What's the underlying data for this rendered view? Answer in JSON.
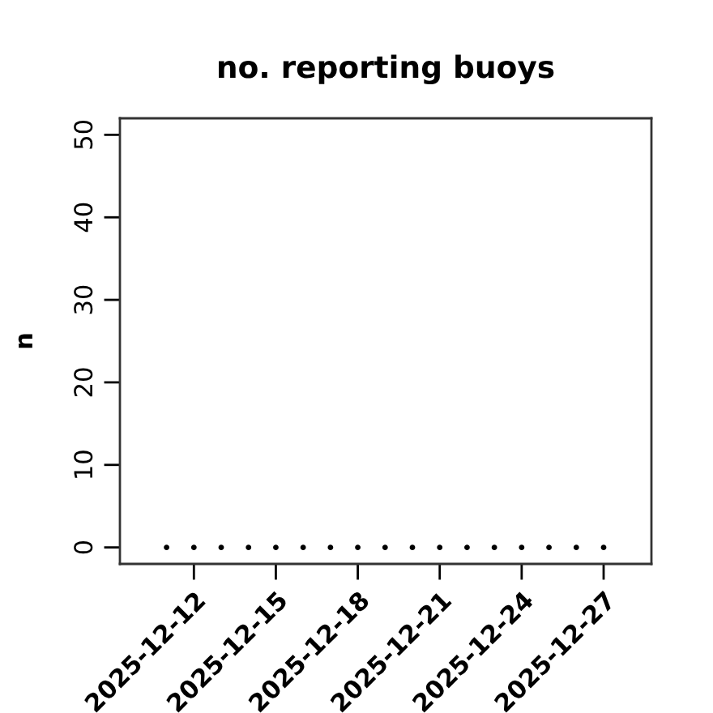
{
  "chart_data": {
    "type": "scatter",
    "title": "no. reporting buoys",
    "ylabel": "n",
    "x": [
      "2025-12-11",
      "2025-12-12",
      "2025-12-13",
      "2025-12-14",
      "2025-12-15",
      "2025-12-16",
      "2025-12-17",
      "2025-12-18",
      "2025-12-19",
      "2025-12-20",
      "2025-12-21",
      "2025-12-22",
      "2025-12-23",
      "2025-12-24",
      "2025-12-25",
      "2025-12-26",
      "2025-12-27"
    ],
    "series": [
      {
        "color": "#000000",
        "values": [
          0,
          0,
          0,
          0,
          0,
          0,
          0,
          0,
          0,
          0,
          0,
          0,
          0,
          0,
          0,
          0,
          0
        ]
      }
    ],
    "xlim": [
      "2025-12-09T07:00",
      "2025-12-28T18:00"
    ],
    "xticks": [
      "2025-12-12",
      "2025-12-15",
      "2025-12-18",
      "2025-12-21",
      "2025-12-24",
      "2025-12-27"
    ],
    "ylim": [
      -2,
      52
    ],
    "yticks": [
      0,
      10,
      20,
      30,
      40,
      50
    ],
    "marker": "circle"
  }
}
